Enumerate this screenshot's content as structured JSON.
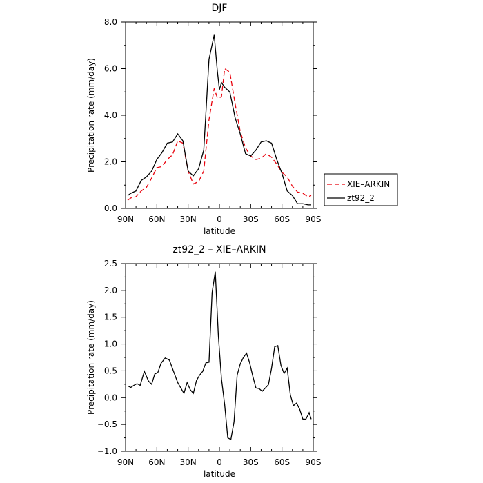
{
  "chart_data": [
    {
      "type": "line",
      "title": "DJF",
      "xlabel": "latitude",
      "ylabel": "Precipitation rate (mm/day)",
      "x_direction": "90N to 90S",
      "xlim": [
        90,
        -90
      ],
      "ylim": [
        0,
        8
      ],
      "x_ticks": [
        90,
        60,
        30,
        0,
        -30,
        -60,
        -90
      ],
      "x_tick_labels": [
        "90N",
        "60N",
        "30N",
        "0",
        "30S",
        "60S",
        "90S"
      ],
      "y_ticks": [
        0,
        2,
        4,
        6,
        8
      ],
      "y_tick_labels": [
        "0.0",
        "2.0",
        "4.0",
        "6.0",
        "8.0"
      ],
      "grid": false,
      "legend": "right",
      "series": [
        {
          "name": "XIE–ARKIN",
          "color": "#e8000b",
          "dash": "dashed",
          "x": [
            88,
            85,
            80,
            75,
            70,
            65,
            60,
            55,
            50,
            45,
            40,
            35,
            30,
            25,
            20,
            15,
            10,
            5,
            2,
            0,
            -2,
            -5,
            -10,
            -15,
            -20,
            -25,
            -30,
            -35,
            -40,
            -45,
            -50,
            -55,
            -60,
            -65,
            -70,
            -75,
            -80,
            -85,
            -88
          ],
          "values": [
            0.35,
            0.45,
            0.5,
            0.75,
            0.9,
            1.3,
            1.75,
            1.8,
            2.1,
            2.3,
            2.9,
            2.8,
            1.6,
            1.05,
            1.15,
            1.6,
            3.8,
            5.15,
            4.75,
            4.75,
            4.8,
            6.0,
            5.85,
            4.5,
            3.3,
            2.6,
            2.25,
            2.1,
            2.15,
            2.35,
            2.2,
            1.9,
            1.55,
            1.35,
            0.95,
            0.7,
            0.65,
            0.5,
            0.55
          ]
        },
        {
          "name": "zt92_2",
          "color": "#000000",
          "dash": "solid",
          "x": [
            88,
            85,
            80,
            75,
            70,
            65,
            60,
            55,
            50,
            45,
            40,
            35,
            30,
            25,
            20,
            15,
            10,
            5,
            2,
            0,
            -2,
            -5,
            -10,
            -15,
            -20,
            -25,
            -30,
            -35,
            -40,
            -45,
            -50,
            -55,
            -60,
            -65,
            -70,
            -75,
            -80,
            -85,
            -88
          ],
          "values": [
            0.55,
            0.65,
            0.75,
            1.2,
            1.35,
            1.6,
            2.1,
            2.4,
            2.8,
            2.85,
            3.2,
            2.9,
            1.6,
            1.4,
            1.7,
            2.5,
            6.4,
            7.45,
            5.9,
            5.1,
            5.4,
            5.2,
            5.0,
            3.9,
            3.2,
            2.35,
            2.25,
            2.5,
            2.85,
            2.9,
            2.8,
            2.1,
            1.5,
            0.75,
            0.55,
            0.2,
            0.2,
            0.15,
            0.15
          ]
        }
      ]
    },
    {
      "type": "line",
      "title": "zt92_2  –  XIE–ARKIN",
      "xlabel": "latitude",
      "ylabel": "Precipitation rate (mm/day)",
      "x_direction": "90N to 90S",
      "xlim": [
        90,
        -90
      ],
      "ylim": [
        -1,
        2.5
      ],
      "x_ticks": [
        90,
        60,
        30,
        0,
        -30,
        -60,
        -90
      ],
      "x_tick_labels": [
        "90N",
        "60N",
        "30N",
        "0",
        "30S",
        "60S",
        "90S"
      ],
      "y_ticks": [
        -1,
        -0.5,
        0,
        0.5,
        1,
        1.5,
        2,
        2.5
      ],
      "y_tick_labels": [
        "−1.0",
        "−0.5",
        "0.0",
        "0.5",
        "1.0",
        "1.5",
        "2.0",
        "2.5"
      ],
      "grid": false,
      "series": [
        {
          "color": "#000000",
          "dash": "solid",
          "x": [
            88,
            85,
            82,
            79,
            76,
            72,
            68,
            65,
            62,
            59,
            56,
            52,
            48,
            44,
            40,
            37,
            34,
            31,
            28,
            25,
            22,
            19,
            16,
            13,
            10,
            7,
            4,
            1,
            -2,
            -5,
            -8,
            -11,
            -14,
            -17,
            -20,
            -23,
            -26,
            -29,
            -32,
            -35,
            -38,
            -41,
            -44,
            -47,
            -50,
            -53,
            -56,
            -59,
            -62,
            -65,
            -68,
            -71,
            -74,
            -77,
            -80,
            -83,
            -86,
            -88
          ],
          "values": [
            0.22,
            0.19,
            0.23,
            0.26,
            0.23,
            0.49,
            0.31,
            0.25,
            0.44,
            0.47,
            0.64,
            0.74,
            0.7,
            0.49,
            0.28,
            0.18,
            0.08,
            0.28,
            0.15,
            0.08,
            0.32,
            0.42,
            0.49,
            0.65,
            0.66,
            1.96,
            2.35,
            1.15,
            0.35,
            -0.13,
            -0.75,
            -0.78,
            -0.45,
            0.42,
            0.63,
            0.75,
            0.83,
            0.65,
            0.4,
            0.18,
            0.17,
            0.12,
            0.18,
            0.24,
            0.55,
            0.95,
            0.97,
            0.6,
            0.45,
            0.55,
            0.05,
            -0.15,
            -0.1,
            -0.22,
            -0.4,
            -0.4,
            -0.28,
            -0.4
          ]
        }
      ]
    }
  ]
}
